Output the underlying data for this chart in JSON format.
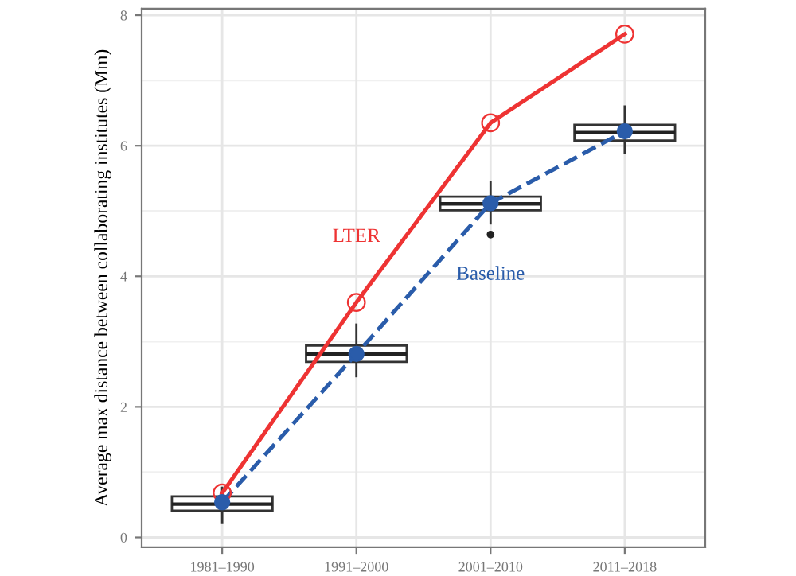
{
  "chart_data": {
    "type": "box",
    "ylabel": "Average max distance between collaborating institutes (Mm)",
    "categories": [
      "1981–1990",
      "1991–2000",
      "2001–2010",
      "2011–2018"
    ],
    "boxes": [
      {
        "low": 0.22,
        "q1": 0.41,
        "median": 0.51,
        "q3": 0.63,
        "high": 0.76
      },
      {
        "low": 2.47,
        "q1": 2.69,
        "median": 2.81,
        "q3": 2.94,
        "high": 3.26
      },
      {
        "low": 4.81,
        "q1": 5.01,
        "median": 5.11,
        "q3": 5.22,
        "high": 5.45,
        "outliers": [
          4.64
        ]
      },
      {
        "low": 5.89,
        "q1": 6.08,
        "median": 6.2,
        "q3": 6.32,
        "high": 6.6
      }
    ],
    "series": [
      {
        "name": "LTER",
        "type": "line",
        "color": "#ee3333",
        "values": [
          0.68,
          3.6,
          6.35,
          7.71
        ],
        "marker": "circle",
        "line_style": "solid"
      },
      {
        "name": "Baseline",
        "type": "line",
        "color": "#2a5caa",
        "values": [
          0.54,
          2.81,
          5.12,
          6.22
        ],
        "marker": "circle",
        "line_style": "dashed"
      }
    ],
    "ylim": [
      -0.15,
      8.1
    ],
    "yticks": [
      0,
      2,
      4,
      6,
      8
    ],
    "grid": true,
    "legend": false
  }
}
